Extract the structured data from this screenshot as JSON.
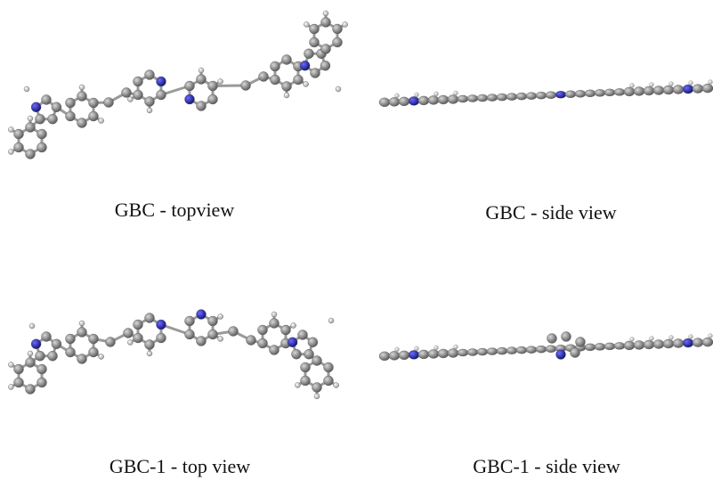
{
  "captions": {
    "gbc_top": "GBC - topview",
    "gbc_side": "GBC - side view",
    "gbc1_top": "GBC-1 - top view",
    "gbc1_side": "GBC-1 - side view"
  }
}
